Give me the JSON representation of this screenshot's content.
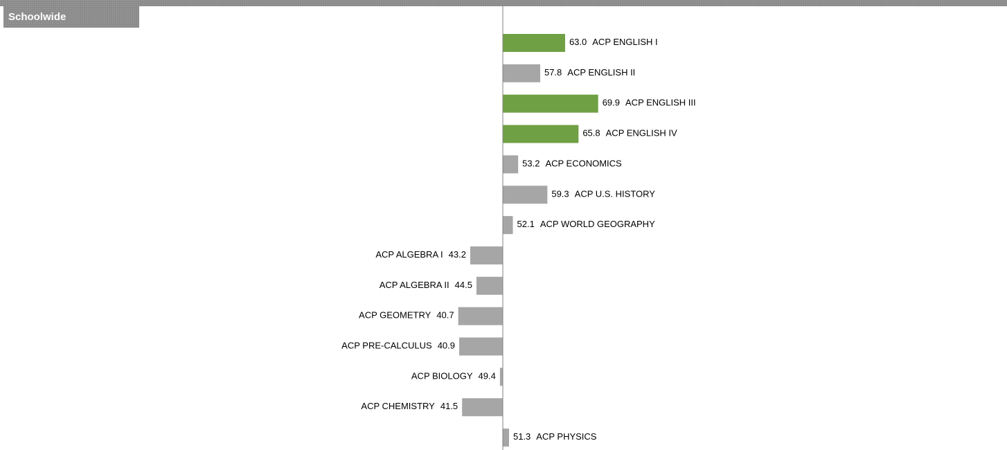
{
  "chart_data": {
    "type": "diverging-bar",
    "title": "Schoolwide",
    "categories": [
      "ACP ENGLISH I",
      "ACP ENGLISH II",
      "ACP ENGLISH III",
      "ACP ENGLISH IV",
      "ACP ECONOMICS",
      "ACP U.S. HISTORY",
      "ACP WORLD GEOGRAPHY",
      "ACP ALGEBRA I",
      "ACP ALGEBRA II",
      "ACP GEOMETRY",
      "ACP PRE-CALCULUS",
      "ACP BIOLOGY",
      "ACP CHEMISTRY",
      "ACP PHYSICS"
    ],
    "values": [
      63.0,
      57.8,
      69.9,
      65.8,
      53.2,
      59.3,
      52.1,
      43.2,
      44.5,
      40.7,
      40.9,
      49.4,
      41.5,
      51.3
    ],
    "value_labels": [
      "63.0",
      "57.8",
      "69.9",
      "65.8",
      "53.2",
      "59.3",
      "52.1",
      "43.2",
      "44.5",
      "40.7",
      "40.9",
      "49.4",
      "41.5",
      "51.3"
    ],
    "colors": [
      "#70a044",
      "#a6a6a6",
      "#70a044",
      "#70a044",
      "#a6a6a6",
      "#a6a6a6",
      "#a6a6a6",
      "#a6a6a6",
      "#a6a6a6",
      "#a6a6a6",
      "#a6a6a6",
      "#a6a6a6",
      "#a6a6a6",
      "#a6a6a6"
    ],
    "baseline": 50,
    "xlim": [
      30,
      90
    ]
  }
}
